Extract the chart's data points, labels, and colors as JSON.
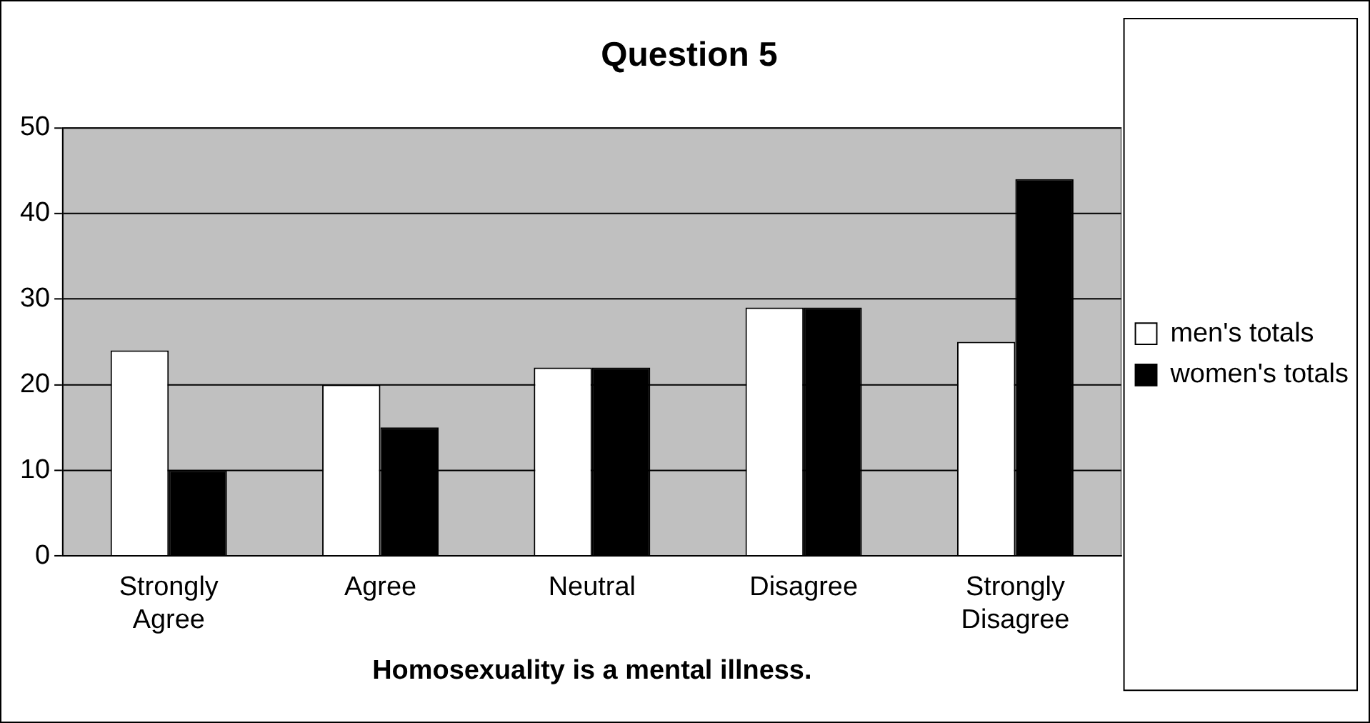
{
  "chart_data": {
    "type": "bar",
    "title": "Question 5",
    "xlabel": "Homosexuality is a mental illness.",
    "categories": [
      "Strongly Agree",
      "Agree",
      "Neutral",
      "Disagree",
      "Strongly Disagree"
    ],
    "series": [
      {
        "name": "men's totals",
        "color": "#ffffff",
        "values": [
          24,
          20,
          22,
          29,
          25
        ]
      },
      {
        "name": "women's totals",
        "color": "#000000",
        "values": [
          10,
          15,
          22,
          29,
          44
        ]
      }
    ],
    "ylim": [
      0,
      50
    ],
    "yticks": [
      0,
      10,
      20,
      30,
      40,
      50
    ],
    "grid": "y",
    "legend": "right"
  }
}
